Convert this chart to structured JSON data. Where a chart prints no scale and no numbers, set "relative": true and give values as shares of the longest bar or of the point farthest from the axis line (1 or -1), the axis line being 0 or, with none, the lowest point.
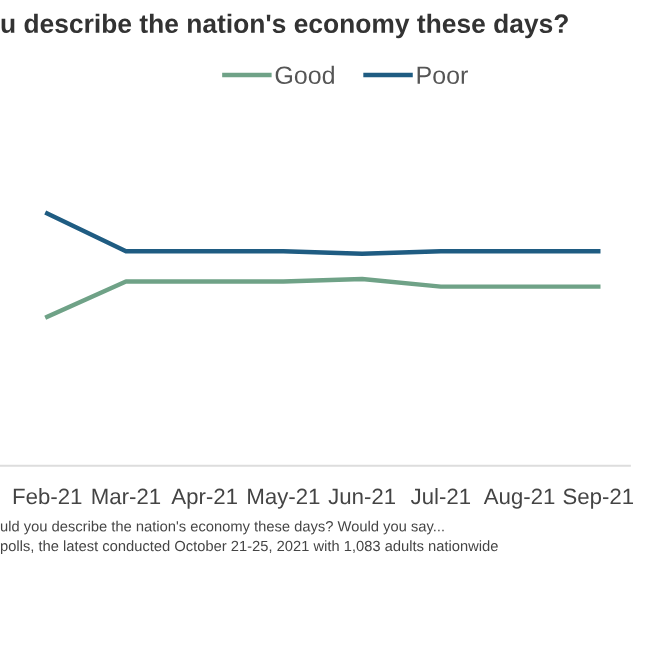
{
  "chart_data": {
    "type": "line",
    "title": "u describe the nation's economy these days?",
    "categories": [
      "Feb-21",
      "Mar-21",
      "Apr-21",
      "May-21",
      "Jun-21",
      "Jul-21",
      "Aug-21",
      "Sep-21"
    ],
    "series": [
      {
        "name": "Good",
        "color": "#6fa287",
        "values": [
          0.59,
          0.73,
          0.73,
          0.73,
          0.74,
          0.71,
          0.71,
          0.71
        ]
      },
      {
        "name": "Poor",
        "color": "#1f5c82",
        "values": [
          1.0,
          0.85,
          0.85,
          0.85,
          0.84,
          0.85,
          0.85,
          0.85
        ]
      }
    ],
    "relative": true,
    "legend": "top",
    "marker": "none",
    "line_style": "solid",
    "annotations": [
      "uld you describe the nation's economy these days? Would you say...",
      "polls, the latest conducted October 21-25, 2021 with 1,083 adults nationwide"
    ]
  }
}
